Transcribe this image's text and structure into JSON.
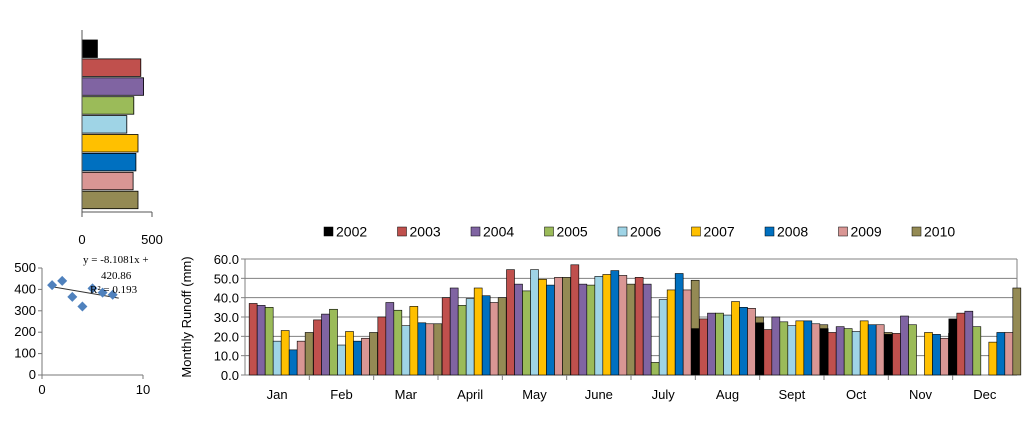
{
  "chart_data": [
    {
      "type": "bar",
      "orientation": "horizontal",
      "series_colors": [
        "#000000",
        "#c0504d",
        "#8064a2",
        "#9bbb59",
        "#9fd4e6",
        "#ffc000",
        "#0070c0",
        "#d99694",
        "#948a54"
      ],
      "values": [
        110,
        420,
        440,
        370,
        320,
        400,
        385,
        365,
        400
      ],
      "xlim": [
        0,
        500
      ],
      "xticks": [
        "0",
        "500"
      ]
    },
    {
      "type": "scatter",
      "x": [
        1,
        2,
        3,
        4,
        5,
        6,
        7
      ],
      "y": [
        420,
        440,
        365,
        320,
        405,
        385,
        375
      ],
      "xlim": [
        0,
        10
      ],
      "ylim": [
        0,
        500
      ],
      "xticks": [
        "0",
        "10"
      ],
      "yticks": [
        "0",
        "100",
        "200",
        "300",
        "400",
        "500"
      ],
      "trendline": {
        "slope": -8.1081,
        "intercept": 420.86
      },
      "equation_lines": [
        "y = -8.1081x +",
        "420.86",
        "R² = 0.193"
      ],
      "marker_color": "#4f81bd"
    },
    {
      "type": "bar",
      "ylabel": "Monthly  Runoff (mm)",
      "ylim": [
        0,
        60
      ],
      "yticks": [
        "0.0",
        "10.0",
        "20.0",
        "30.0",
        "40.0",
        "50.0",
        "60.0"
      ],
      "grid": true,
      "legend_position": "top",
      "categories": [
        "Jan",
        "Feb",
        "Mar",
        "April",
        "May",
        "June",
        "July",
        "Aug",
        "Sept",
        "Oct",
        "Nov",
        "Dec"
      ],
      "series": [
        {
          "name": "2002",
          "color": "#000000",
          "values": [
            0,
            0,
            0,
            0,
            0,
            0,
            0,
            24.0,
            27.0,
            24.0,
            21.0,
            29.0
          ]
        },
        {
          "name": "2003",
          "color": "#c0504d",
          "values": [
            37.0,
            28.5,
            30.0,
            40.0,
            54.5,
            57.0,
            50.5,
            29.0,
            23.5,
            22.0,
            21.5,
            32.0
          ]
        },
        {
          "name": "2004",
          "color": "#8064a2",
          "values": [
            36.0,
            31.5,
            37.5,
            45.0,
            47.0,
            47.0,
            47.0,
            32.0,
            30.0,
            25.0,
            30.5,
            33.0
          ]
        },
        {
          "name": "2005",
          "color": "#9bbb59",
          "values": [
            35.0,
            34.0,
            33.5,
            36.0,
            43.5,
            46.5,
            6.5,
            32.0,
            27.5,
            24.0,
            26.0,
            25.0
          ]
        },
        {
          "name": "2006",
          "color": "#9fd4e6",
          "values": [
            17.5,
            15.5,
            25.5,
            39.5,
            54.5,
            51.0,
            39.0,
            31.0,
            25.5,
            22.5,
            0,
            0
          ]
        },
        {
          "name": "2007",
          "color": "#ffc000",
          "values": [
            23.0,
            22.5,
            35.5,
            45.0,
            49.5,
            52.0,
            44.0,
            38.0,
            28.0,
            28.0,
            22.0,
            17.0
          ]
        },
        {
          "name": "2008",
          "color": "#0070c0",
          "values": [
            13.0,
            17.5,
            27.0,
            41.0,
            46.5,
            54.0,
            52.5,
            35.0,
            28.0,
            26.0,
            21.0,
            22.0
          ]
        },
        {
          "name": "2009",
          "color": "#d99694",
          "values": [
            17.5,
            19.0,
            26.5,
            37.5,
            50.5,
            51.5,
            44.0,
            34.5,
            26.5,
            26.0,
            19.0,
            22.0
          ]
        },
        {
          "name": "2010",
          "color": "#948a54",
          "values": [
            22.0,
            22.0,
            26.5,
            40.0,
            50.5,
            47.0,
            49.0,
            30.0,
            26.0,
            22.0,
            21.5,
            45.0
          ]
        }
      ]
    }
  ]
}
